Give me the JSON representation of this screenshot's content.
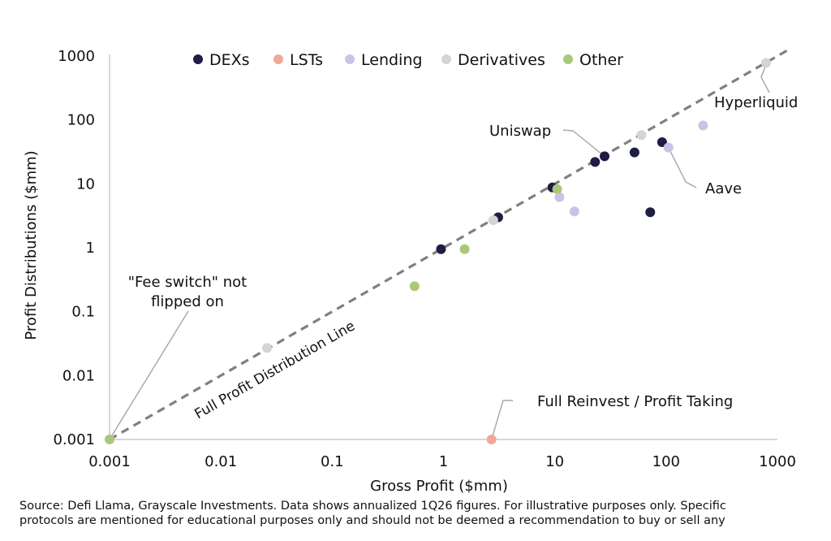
{
  "chart_data": {
    "type": "scatter",
    "xlabel": "Gross Profit ($mm)",
    "ylabel": "Profit Distributions ($mm)",
    "xscale": "log",
    "yscale": "log",
    "xlim": [
      0.001,
      1000
    ],
    "ylim": [
      0.001,
      1000
    ],
    "x_ticks": [
      0.001,
      0.01,
      0.1,
      1,
      10,
      100,
      1000
    ],
    "x_tick_labels": [
      "0.001",
      "0.01",
      "0.1",
      "1",
      "10",
      "100",
      "1000"
    ],
    "y_ticks": [
      0.001,
      0.01,
      0.1,
      1,
      10,
      100,
      1000
    ],
    "y_tick_labels": [
      "0.001",
      "0.01",
      "0.1",
      "1",
      "10",
      "100",
      "1000"
    ],
    "grid": false,
    "legend_position": "top",
    "series": [
      {
        "name": "DEXs",
        "color": "#1e1d45",
        "points": [
          [
            0.95,
            0.95
          ],
          [
            3.1,
            3.0
          ],
          [
            9.5,
            8.8
          ],
          [
            23,
            22
          ],
          [
            28,
            27
          ],
          [
            52,
            31
          ],
          [
            92,
            45
          ],
          [
            72,
            3.6
          ]
        ]
      },
      {
        "name": "LSTs",
        "color": "#f2a899",
        "points": [
          [
            2.7,
            0.001
          ]
        ]
      },
      {
        "name": "Lending",
        "color": "#c9c3e8",
        "points": [
          [
            11,
            6.2
          ],
          [
            15,
            3.7
          ],
          [
            105,
            37
          ],
          [
            215,
            82
          ]
        ]
      },
      {
        "name": "Derivatives",
        "color": "#d4d4d4",
        "points": [
          [
            0.026,
            0.027
          ],
          [
            2.8,
            2.7
          ],
          [
            60,
            58
          ],
          [
            790,
            780
          ]
        ]
      },
      {
        "name": "Other",
        "color": "#a9c978",
        "points": [
          [
            0.001,
            0.001
          ],
          [
            0.55,
            0.25
          ],
          [
            1.55,
            0.95
          ],
          [
            10.5,
            8.3
          ]
        ]
      }
    ],
    "reference_line": {
      "label": "Full Profit Distribution Line",
      "from": [
        0.001,
        0.001
      ],
      "to": [
        1000,
        1000
      ],
      "color": "#808080"
    },
    "annotations": [
      {
        "text": "Hyperliquid",
        "x": 800,
        "y": 790
      },
      {
        "text": "Uniswap",
        "x": 28,
        "y": 27
      },
      {
        "text": "Aave",
        "x": 105,
        "y": 37
      },
      {
        "text": "\"Fee switch\" not flipped on",
        "x": 0.001,
        "y": 0.001
      },
      {
        "text": "Full Reinvest / Profit Taking",
        "x": 2.7,
        "y": 0.001
      }
    ]
  },
  "legend": [
    {
      "label": "DEXs",
      "color": "#1e1d45"
    },
    {
      "label": "LSTs",
      "color": "#f2a899"
    },
    {
      "label": "Lending",
      "color": "#c9c3e8"
    },
    {
      "label": "Derivatives",
      "color": "#d4d4d4"
    },
    {
      "label": "Other",
      "color": "#a9c978"
    }
  ],
  "annotation_labels": {
    "hyperliquid": "Hyperliquid",
    "uniswap": "Uniswap",
    "aave": "Aave",
    "fee_switch_line1": "\"Fee switch\" not",
    "fee_switch_line2": "flipped on",
    "full_reinvest": "Full Reinvest / Profit Taking"
  },
  "source_line1": "Source: Defi Llama, Grayscale Investments. Data shows annualized 1Q26 figures. For illustrative purposes only. Specific",
  "source_line2": "protocols are mentioned for educational purposes only and should not be deemed a recommendation to buy or sell any"
}
